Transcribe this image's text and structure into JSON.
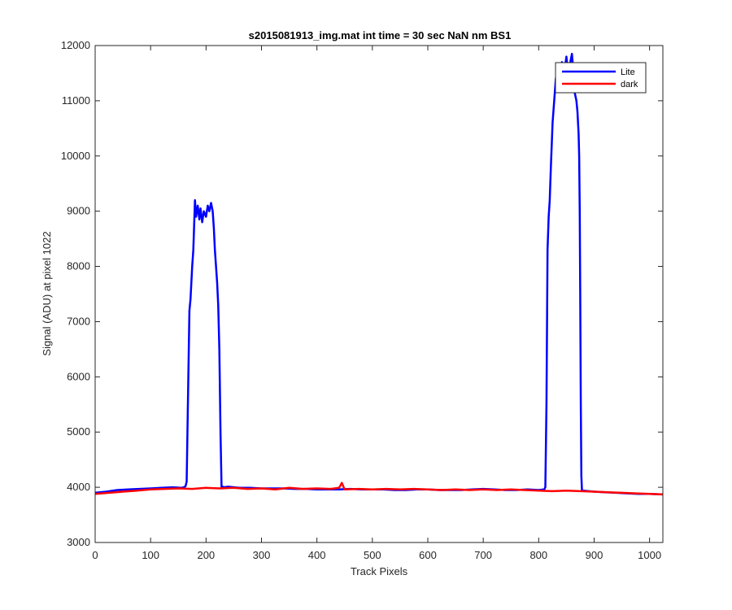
{
  "chart_data": {
    "type": "line",
    "title": "s2015081913_img.mat int time = 30 sec  NaN nm BS1",
    "xlabel": "Track Pixels",
    "ylabel": "Signal (ADU) at pixel 1022",
    "xlim": [
      0,
      1024
    ],
    "ylim": [
      3000,
      12000
    ],
    "xticks": [
      0,
      100,
      200,
      300,
      400,
      500,
      600,
      700,
      800,
      900,
      1000
    ],
    "yticks": [
      3000,
      4000,
      5000,
      6000,
      7000,
      8000,
      9000,
      10000,
      11000,
      12000
    ],
    "grid": false,
    "legend_position": "top-right",
    "series": [
      {
        "name": "Lite",
        "color": "#0000ff",
        "x": [
          0,
          20,
          40,
          60,
          80,
          100,
          120,
          140,
          155,
          160,
          163,
          165,
          167,
          170,
          172,
          175,
          177,
          180,
          182,
          185,
          188,
          190,
          193,
          196,
          200,
          203,
          206,
          209,
          212,
          214,
          216,
          218,
          220,
          222,
          224,
          226,
          228,
          230,
          232,
          240,
          260,
          280,
          300,
          320,
          340,
          360,
          380,
          400,
          420,
          440,
          460,
          480,
          500,
          520,
          540,
          560,
          580,
          600,
          620,
          640,
          660,
          680,
          700,
          720,
          740,
          760,
          780,
          800,
          810,
          812,
          814,
          816,
          818,
          820,
          822,
          825,
          828,
          831,
          834,
          838,
          842,
          846,
          850,
          854,
          857,
          860,
          862,
          864,
          866,
          868,
          870,
          872,
          873,
          874,
          875,
          876,
          877,
          878,
          880,
          900,
          920,
          940,
          960,
          980,
          1000,
          1024
        ],
        "y": [
          3900,
          3920,
          3950,
          3960,
          3970,
          3980,
          3990,
          4000,
          3990,
          4000,
          4020,
          4100,
          5300,
          7200,
          7400,
          8000,
          8300,
          9200,
          8900,
          9100,
          8850,
          9050,
          8800,
          9000,
          8900,
          9100,
          9000,
          9150,
          9000,
          8700,
          8300,
          8000,
          7700,
          7300,
          6500,
          5000,
          4000,
          4010,
          4000,
          4010,
          3990,
          3990,
          3980,
          3980,
          3980,
          3970,
          3970,
          3960,
          3960,
          3960,
          3970,
          3960,
          3960,
          3960,
          3950,
          3950,
          3960,
          3960,
          3950,
          3950,
          3950,
          3960,
          3970,
          3960,
          3950,
          3950,
          3960,
          3950,
          3960,
          4000,
          5500,
          8300,
          8900,
          9200,
          9800,
          10600,
          11000,
          11400,
          11600,
          11300,
          11700,
          11500,
          11800,
          11400,
          11700,
          11850,
          11600,
          11200,
          11100,
          11000,
          10800,
          10400,
          10000,
          9000,
          7500,
          5500,
          4200,
          3950,
          3940,
          3920,
          3910,
          3900,
          3890,
          3880,
          3880,
          3870
        ]
      },
      {
        "name": "dark",
        "color": "#ff0000",
        "x": [
          0,
          25,
          50,
          75,
          100,
          125,
          150,
          175,
          200,
          225,
          250,
          275,
          300,
          325,
          350,
          375,
          400,
          425,
          440,
          445,
          450,
          475,
          500,
          525,
          550,
          575,
          600,
          625,
          650,
          675,
          700,
          725,
          750,
          775,
          800,
          825,
          850,
          875,
          900,
          925,
          950,
          975,
          1000,
          1024
        ],
        "y": [
          3880,
          3900,
          3920,
          3940,
          3960,
          3970,
          3980,
          3970,
          3990,
          3980,
          3990,
          3970,
          3980,
          3960,
          3990,
          3970,
          3980,
          3970,
          3990,
          4080,
          3960,
          3970,
          3960,
          3970,
          3960,
          3970,
          3960,
          3950,
          3960,
          3950,
          3960,
          3950,
          3960,
          3950,
          3940,
          3930,
          3940,
          3930,
          3920,
          3910,
          3900,
          3890,
          3880,
          3870
        ]
      }
    ]
  }
}
